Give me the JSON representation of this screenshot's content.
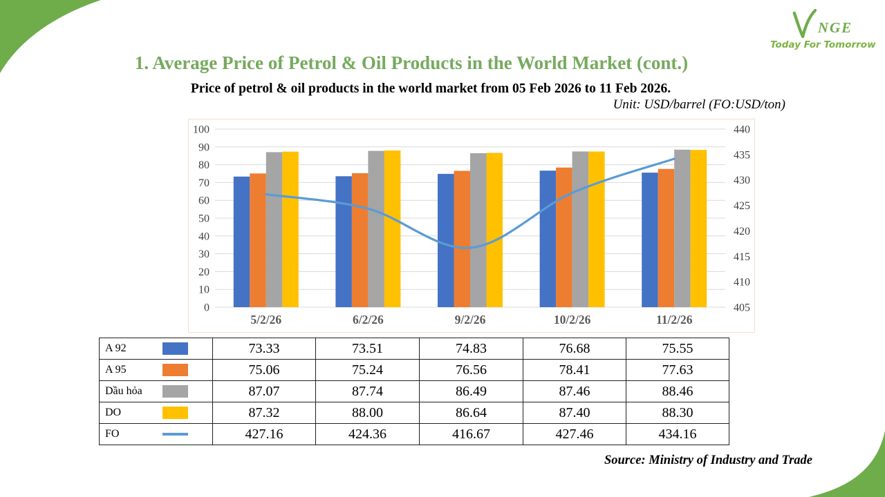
{
  "slide": {
    "title": "1. Average Price of Petrol & Oil Products in the World Market (cont.)",
    "subtitle": "Price of petrol & oil products in the world market from 05 Feb 2026 to 11 Feb 2026.",
    "unit_note": "Unit: USD/barrel (FO:USD/ton)",
    "source": "Source: Ministry of Industry and Trade"
  },
  "logo": {
    "v": "V",
    "name": "NGE",
    "tagline": "Today For Tomorrow"
  },
  "colors": {
    "title_green": "#76aa5e",
    "corner_green": "#6fac4a",
    "logo_green": "#7cb342",
    "grid": "#d9d9d9",
    "axis_text": "#3f3f3f",
    "category_text": "#595959",
    "chart_border": "#f0e2c0"
  },
  "chart_data": {
    "type": "bar",
    "subtype": "combo bar + line, dual axis",
    "title": "Price of petrol & oil products in the world market from 05 Feb 2026 to 11 Feb 2026.",
    "categories": [
      "5/2/26",
      "6/2/26",
      "9/2/26",
      "10/2/26",
      "11/2/26"
    ],
    "series": [
      {
        "name": "A 92",
        "type": "bar",
        "axis": "left",
        "color": "#4472C4",
        "values": [
          73.33,
          73.51,
          74.83,
          76.68,
          75.55
        ]
      },
      {
        "name": "A 95",
        "type": "bar",
        "axis": "left",
        "color": "#ED7D31",
        "values": [
          75.06,
          75.24,
          76.56,
          78.41,
          77.63
        ]
      },
      {
        "name": "Dầu hỏa",
        "type": "bar",
        "axis": "left",
        "color": "#A5A5A5",
        "values": [
          87.07,
          87.74,
          86.49,
          87.46,
          88.46
        ]
      },
      {
        "name": "DO",
        "type": "bar",
        "axis": "left",
        "color": "#FFC000",
        "values": [
          87.32,
          88.0,
          86.64,
          87.4,
          88.3
        ]
      },
      {
        "name": "FO",
        "type": "line",
        "axis": "right",
        "color": "#5B9BD5",
        "values": [
          427.16,
          424.36,
          416.67,
          427.46,
          434.16
        ]
      }
    ],
    "left_axis": {
      "min": 0,
      "max": 100,
      "step": 10
    },
    "right_axis": {
      "min": 405,
      "max": 440,
      "step": 5
    },
    "grid": true,
    "legend": "shown as first column of table below chart",
    "value_decimals": 2
  }
}
